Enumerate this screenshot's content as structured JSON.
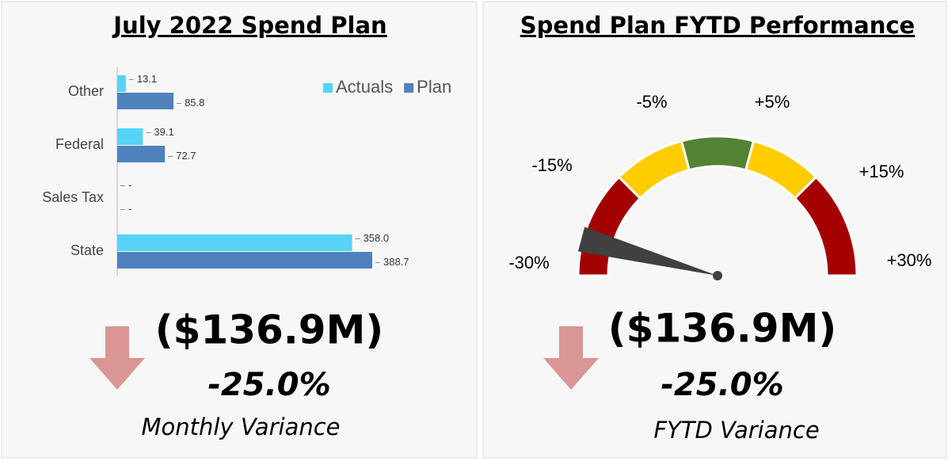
{
  "chart_data": [
    {
      "type": "bar",
      "orientation": "horizontal",
      "title": "July 2022 Spend Plan",
      "categories": [
        "Other",
        "Federal",
        "Sales Tax",
        "State"
      ],
      "series": [
        {
          "name": "Actuals",
          "color": "#56d3f6",
          "values": [
            13.1,
            39.1,
            0,
            358.0
          ],
          "value_labels": [
            "13.1",
            "39.1",
            "-",
            "358.0"
          ]
        },
        {
          "name": "Plan",
          "color": "#4f81bd",
          "values": [
            85.8,
            72.7,
            0,
            388.7
          ],
          "value_labels": [
            "85.8",
            "72.7",
            "-",
            "388.7"
          ]
        }
      ],
      "legend": "top-right",
      "amount_label": "($136.9M)",
      "value_label": "-25.0%",
      "caption": "Monthly Variance"
    },
    {
      "type": "gauge",
      "title": "Spend Plan FYTD Performance",
      "ticks": [
        {
          "value": -30,
          "label": "-30%"
        },
        {
          "value": -15,
          "label": "-15%"
        },
        {
          "value": -5,
          "label": "-5%"
        },
        {
          "value": 5,
          "label": "+5%"
        },
        {
          "value": 15,
          "label": "+15%"
        },
        {
          "value": 30,
          "label": "+30%"
        }
      ],
      "band_colors": [
        "#a50000",
        "#ffcc00",
        "#548235",
        "#ffcc00",
        "#a50000"
      ],
      "value": -25,
      "value_label": "-25.0%",
      "amount_label": "($136.9M)",
      "caption": "FYTD Variance"
    }
  ]
}
